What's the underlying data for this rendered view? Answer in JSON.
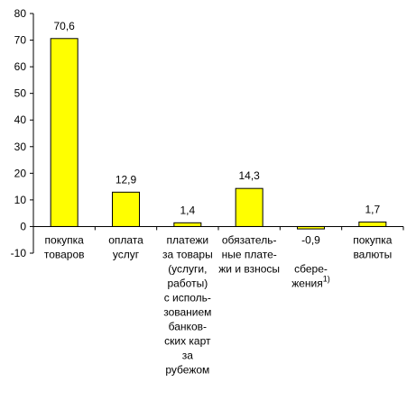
{
  "chart_data": {
    "type": "bar",
    "ylim": [
      -10,
      80
    ],
    "yticks": [
      -10,
      0,
      10,
      20,
      30,
      40,
      50,
      60,
      70,
      80
    ],
    "grid": false,
    "bar_color": "#FFFF00",
    "bar_edge_color": "#000000",
    "categories": [
      [
        "покупка",
        "товаров"
      ],
      [
        "оплата",
        "услуг"
      ],
      [
        "платежи",
        "за товары",
        "(услуги,",
        "работы)",
        "с исполь-",
        "зованием",
        "банков-",
        "ских карт",
        "за",
        "рубежом"
      ],
      [
        "обязатель-",
        "ные плате-",
        "жи и взносы"
      ],
      [
        "сбере-",
        "жения"
      ],
      [
        "покупка",
        "валюты"
      ]
    ],
    "category_footnotes": [
      "",
      "",
      "",
      "",
      "1)",
      ""
    ],
    "values": [
      70.6,
      12.9,
      1.4,
      14.3,
      -0.9,
      1.7
    ],
    "value_labels": [
      "70,6",
      "12,9",
      "1,4",
      "14,3",
      "-0,9",
      "1,7"
    ]
  }
}
